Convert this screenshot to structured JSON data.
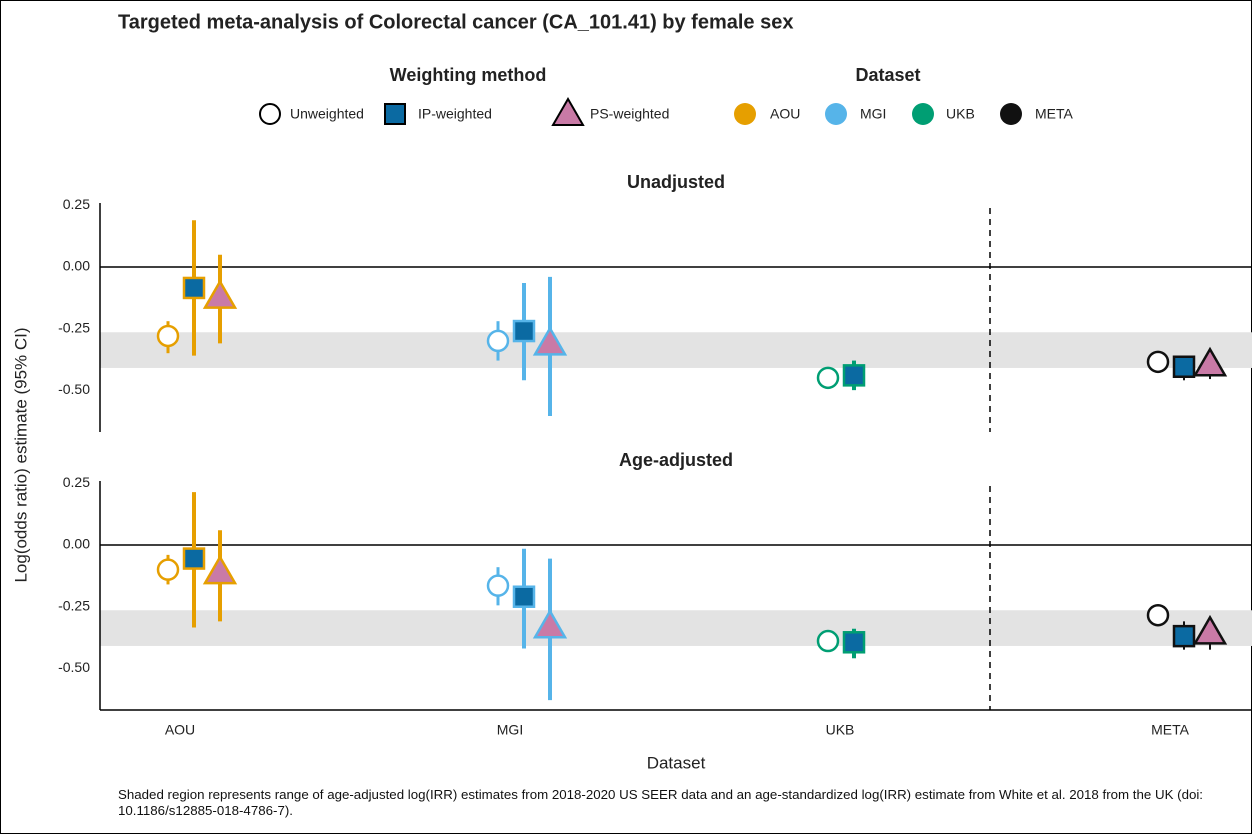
{
  "chart_data": {
    "type": "forest",
    "title": "Targeted meta-analysis of Colorectal cancer (CA_101.41) by female sex",
    "legend_weighting_title": "Weighting method",
    "legend_dataset_title": "Dataset",
    "categories": [
      "AOU",
      "MGI",
      "UKB",
      "META"
    ],
    "category_colors": [
      "#E69F00",
      "#56B4E9",
      "#009E73",
      "#111111"
    ],
    "x_label": "Dataset",
    "y_label": "Log(odds ratio) estimate (95% CI)",
    "note": "Shaded region represents range of age-adjusted log(IRR) estimates from 2018-2020 US SEER data and an age-standardized log(IRR) estimate from White et al. 2018 from the UK (doi: 10.1186/s12885-018-4786-7).",
    "panels": [
      {
        "title": "Unadjusted",
        "ylim": [
          -0.67,
          0.26
        ],
        "yticks": [
          0.25,
          {
            "value": 0,
            "label": "0.00"
          },
          -0.25,
          {
            "value": -0.5,
            "label": "-0.50"
          }
        ],
        "band": [
          -0.41,
          -0.265
        ],
        "hline": 0,
        "series": [
          {
            "name": "Unweighted",
            "shape": "circle",
            "fill": "#ffffff",
            "values": [
              -0.28,
              -0.3,
              -0.45,
              -0.385
            ],
            "ci_low": [
              -0.35,
              -0.38,
              null,
              null
            ],
            "ci_high": [
              -0.22,
              -0.22,
              null,
              null
            ]
          },
          {
            "name": "IP-weighted",
            "shape": "square",
            "fill": "#0b6aa2",
            "values": [
              -0.085,
              -0.26,
              -0.44,
              -0.405
            ],
            "ci_low": [
              -0.36,
              -0.46,
              -0.5,
              -0.46
            ],
            "ci_high": [
              0.19,
              -0.065,
              -0.38,
              -0.36
            ]
          },
          {
            "name": "PS-weighted",
            "shape": "triangle",
            "fill": "#c97aa6",
            "values": [
              -0.12,
              -0.31,
              null,
              -0.395
            ],
            "ci_low": [
              -0.31,
              -0.605,
              null,
              -0.455
            ],
            "ci_high": [
              0.05,
              -0.04,
              null,
              -0.345
            ]
          }
        ]
      },
      {
        "title": "Age-adjusted",
        "ylim": [
          -0.67,
          0.26
        ],
        "yticks": [
          0.25,
          {
            "value": 0,
            "label": "0.00"
          },
          -0.25,
          {
            "value": -0.5,
            "label": "-0.50"
          }
        ],
        "band": [
          -0.41,
          -0.265
        ],
        "hline": 0,
        "series": [
          {
            "name": "Unweighted",
            "shape": "circle",
            "fill": "#ffffff",
            "values": [
              -0.1,
              -0.165,
              -0.39,
              -0.285
            ],
            "ci_low": [
              -0.16,
              -0.245,
              null,
              null
            ],
            "ci_high": [
              -0.04,
              -0.09,
              null,
              null
            ]
          },
          {
            "name": "IP-weighted",
            "shape": "square",
            "fill": "#0b6aa2",
            "values": [
              -0.055,
              -0.21,
              -0.395,
              -0.37
            ],
            "ci_low": [
              -0.335,
              -0.42,
              -0.46,
              -0.425
            ],
            "ci_high": [
              0.215,
              -0.015,
              -0.34,
              -0.31
            ]
          },
          {
            "name": "PS-weighted",
            "shape": "triangle",
            "fill": "#c97aa6",
            "values": [
              -0.11,
              -0.33,
              null,
              -0.355
            ],
            "ci_low": [
              -0.31,
              -0.63,
              null,
              -0.425
            ],
            "ci_high": [
              0.06,
              -0.055,
              null,
              -0.305
            ]
          }
        ]
      }
    ]
  }
}
